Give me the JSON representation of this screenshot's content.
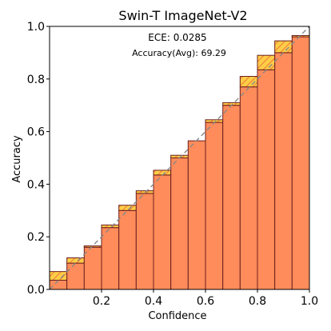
{
  "chart_data": {
    "type": "bar",
    "title": "Swin-T  ImageNet-V2",
    "xlabel": "Confidence",
    "ylabel": "Accuracy",
    "xlim": [
      0.0,
      1.0
    ],
    "ylim": [
      0.0,
      1.0
    ],
    "xticks": [
      0.2,
      0.4,
      0.6,
      0.8,
      1.0
    ],
    "xtick_labels": [
      "0.2",
      "0.4",
      "0.6",
      "0.8",
      "1.0"
    ],
    "yticks": [
      0.0,
      0.2,
      0.4,
      0.6,
      0.8,
      1.0
    ],
    "ytick_labels": [
      "0.0",
      "0.2",
      "0.4",
      "0.6",
      "0.8",
      "1.0"
    ],
    "annotations": [
      "ECE: 0.0285",
      "Accuracy(Avg): 69.29"
    ],
    "grid": false,
    "bin_width": 0.0667,
    "bin_left_edges": [
      0.0,
      0.0667,
      0.1333,
      0.2,
      0.2667,
      0.3333,
      0.4,
      0.4667,
      0.5333,
      0.6,
      0.6667,
      0.7333,
      0.8,
      0.8667,
      0.9333
    ],
    "accuracy": [
      0.035,
      0.1,
      0.165,
      0.235,
      0.3,
      0.365,
      0.435,
      0.5,
      0.565,
      0.635,
      0.7,
      0.77,
      0.835,
      0.9,
      0.965
    ],
    "confidence": [
      0.068,
      0.12,
      0.16,
      0.245,
      0.32,
      0.375,
      0.453,
      0.51,
      0.565,
      0.645,
      0.71,
      0.81,
      0.89,
      0.945,
      0.96
    ],
    "colors": {
      "accuracy_bar": "#ff8c5a",
      "gap_fill": "#ffc832",
      "gap_hatch": "#e23e1e",
      "edge": "#6b1f1f",
      "diagonal": "#888888"
    }
  }
}
